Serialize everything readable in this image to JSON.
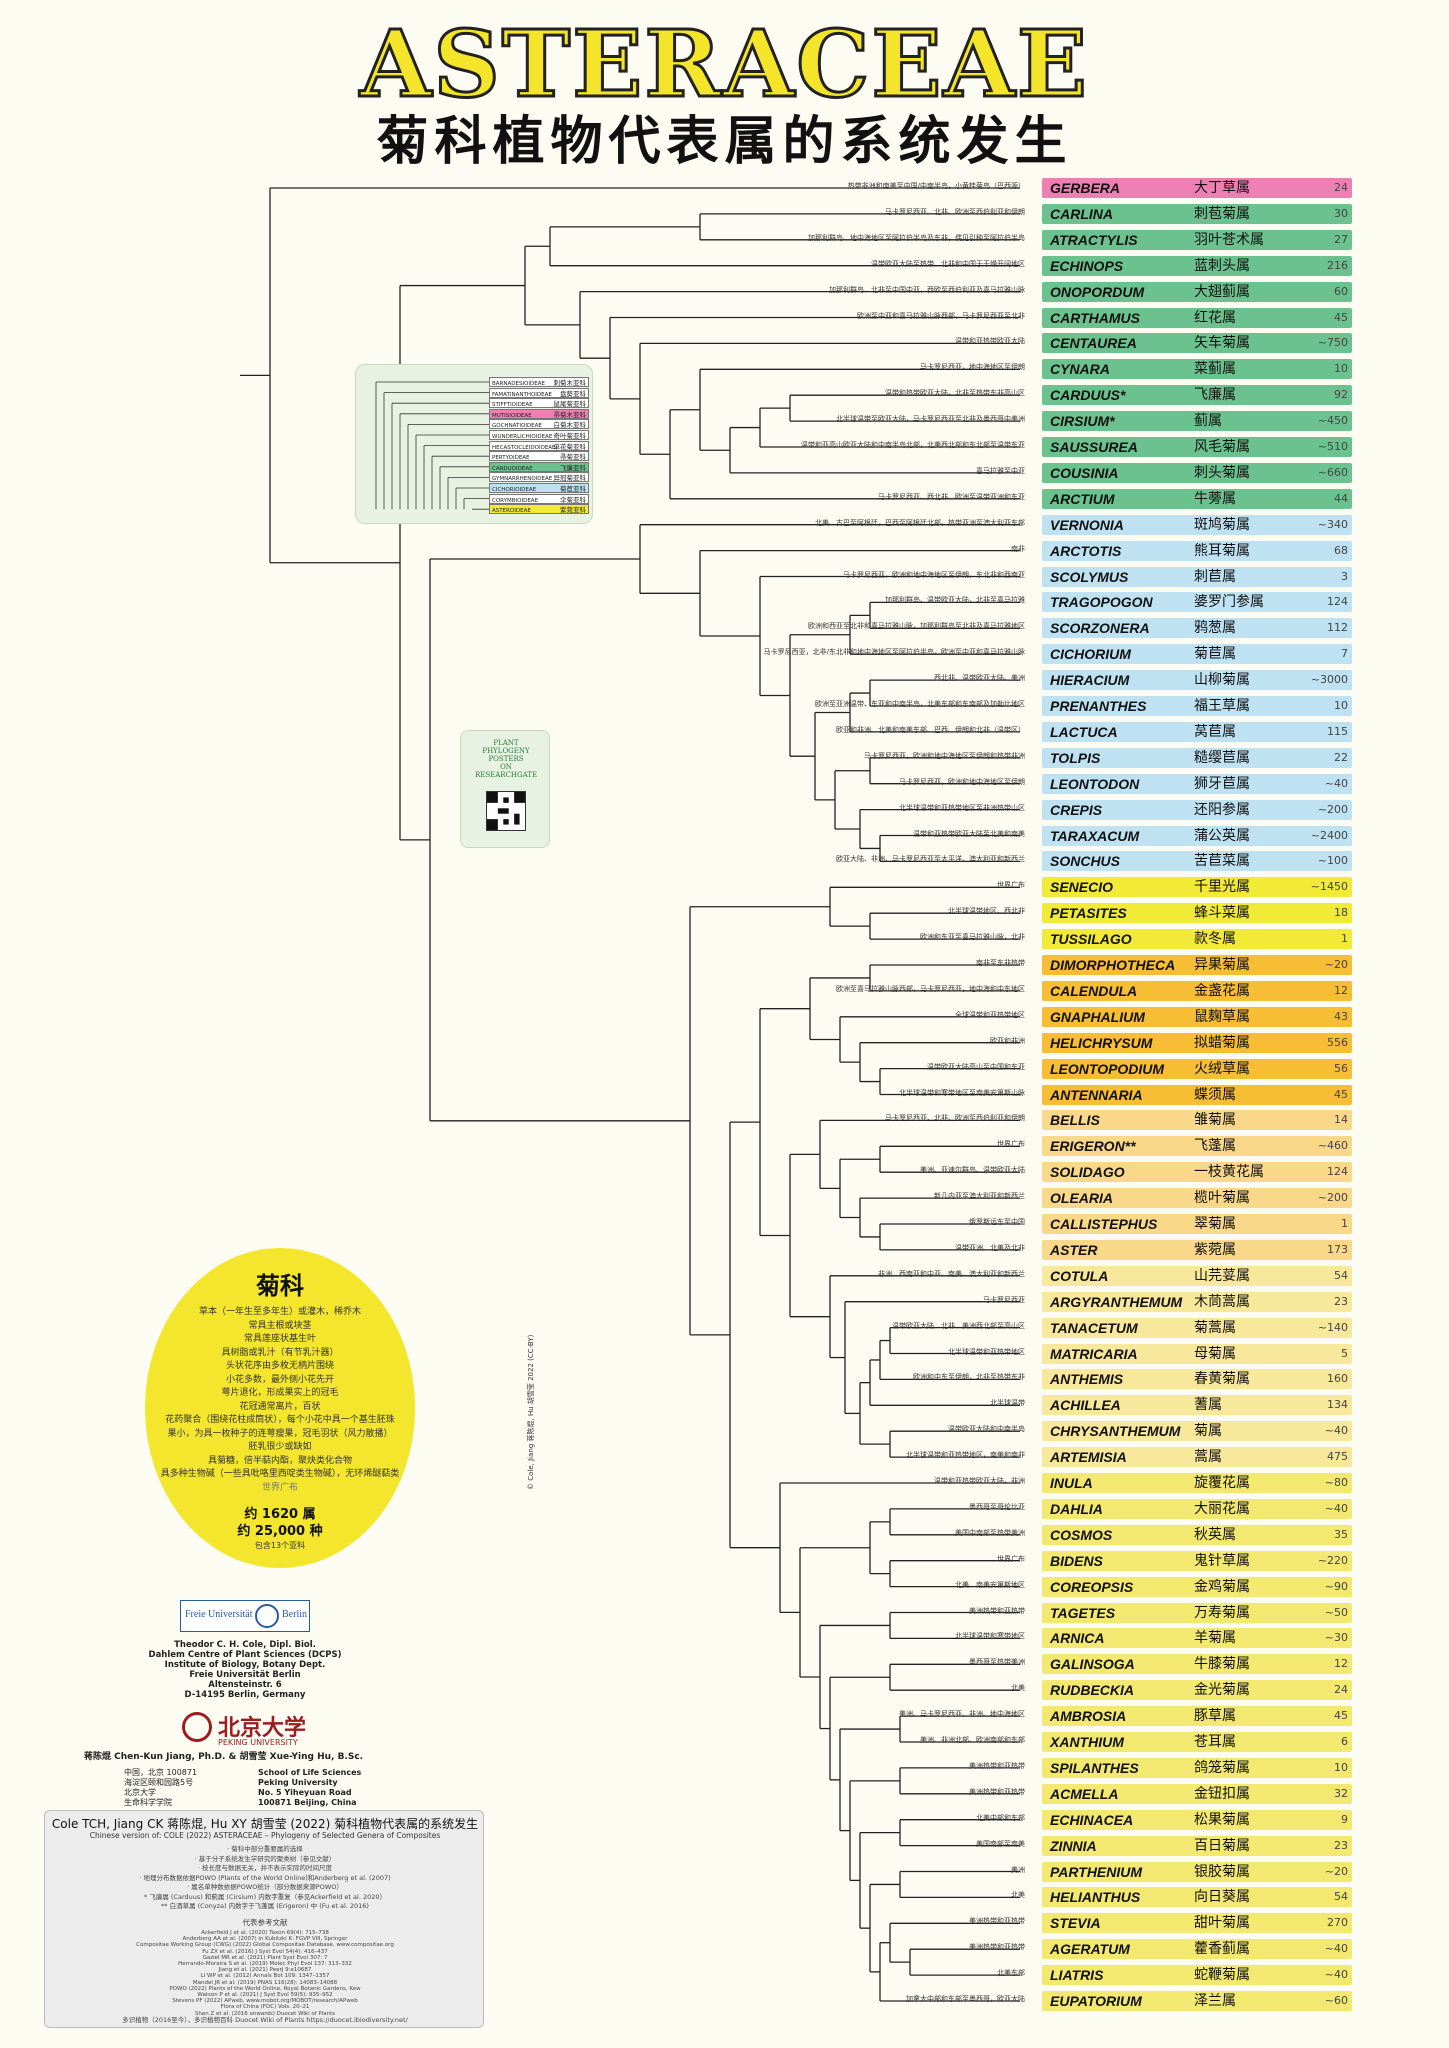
{
  "title": "ASTERACEAE",
  "subtitle": "菊科植物代表属的系统发生",
  "colors": {
    "pink": "#ee7fb3",
    "green": "#6cc28e",
    "lightblue": "#bfe2f3",
    "yellow": "#f1ea36",
    "orange": "#f6bd35",
    "lightorange": "#fad88a",
    "cream": "#f8e89b",
    "paleyellow": "#f4e970"
  },
  "genera": [
    {
      "lat": "GERBERA",
      "zh": "大丁草属",
      "n": "24",
      "c": "pink",
      "note": "热带非洲和南美至中国/中南半岛，小黄桂菊岛（巴西源）"
    },
    {
      "lat": "CARLINA",
      "zh": "刺苞菊属",
      "n": "30",
      "c": "green",
      "note": "马卡罗尼西亚、北非、欧洲至西伯利亚和伊朗"
    },
    {
      "lat": "ATRACTYLIS",
      "zh": "羽叶苍术属",
      "n": "27",
      "c": "green",
      "note": "加那利群岛、地中海地区至阿拉伯半岛及东非，偶见引种至阿拉伯半岛"
    },
    {
      "lat": "ECHINOPS",
      "zh": "蓝刺头属",
      "n": "216",
      "c": "green",
      "note": "温带欧亚大陆至热带、北非和中国于干燥开阔地区"
    },
    {
      "lat": "ONOPORDUM",
      "zh": "大翅蓟属",
      "n": "60",
      "c": "green",
      "note": "加那利群岛、北非至中国中亚，西欧至西伯利亚及喜马拉雅山脉"
    },
    {
      "lat": "CARTHAMUS",
      "zh": "红花属",
      "n": "45",
      "c": "green",
      "note": "欧洲至中亚和喜马拉雅山脉西部，马卡罗尼西亚至北非"
    },
    {
      "lat": "CENTAUREA",
      "zh": "矢车菊属",
      "n": "~750",
      "c": "green",
      "note": "温带和亚热带欧亚大陆"
    },
    {
      "lat": "CYNARA",
      "zh": "菜蓟属",
      "n": "10",
      "c": "green",
      "note": "马卡罗尼西亚，地中海地区至伊朗"
    },
    {
      "lat": "CARDUUS*",
      "zh": "飞廉属",
      "n": "92",
      "c": "green",
      "note": "温带和热带欧亚大陆，北非至热带东非高山区"
    },
    {
      "lat": "CIRSIUM*",
      "zh": "蓟属",
      "n": "~450",
      "c": "green",
      "note": "北半球温带至欧亚大陆，马卡罗尼西亚至北非及墨西哥中美洲"
    },
    {
      "lat": "SAUSSUREA",
      "zh": "风毛菊属",
      "n": "~510",
      "c": "green",
      "note": "温带和亚高山欧亚大陆和中南半岛北部，北美西北部和东北部至温带东亚"
    },
    {
      "lat": "COUSINIA",
      "zh": "刺头菊属",
      "n": "~660",
      "c": "green",
      "note": "喜马拉雅至中亚"
    },
    {
      "lat": "ARCTIUM",
      "zh": "牛蒡属",
      "n": "44",
      "c": "green",
      "note": "马卡罗尼西亚、西北非、欧洲至温带亚洲和东亚"
    },
    {
      "lat": "VERNONIA",
      "zh": "斑鸠菊属",
      "n": "~340",
      "c": "lightblue",
      "note": "北美、古巴至阿根廷，巴西至阿根廷北部，热带亚洲至澳大利亚东部"
    },
    {
      "lat": "ARCTOTIS",
      "zh": "熊耳菊属",
      "n": "68",
      "c": "lightblue",
      "note": "南非"
    },
    {
      "lat": "SCOLYMUS",
      "zh": "刺苣属",
      "n": "3",
      "c": "lightblue",
      "note": "马卡罗尼西亚，欧洲和地中海地区至伊朗，东北非和西南亚"
    },
    {
      "lat": "TRAGOPOGON",
      "zh": "婆罗门参属",
      "n": "124",
      "c": "lightblue",
      "note": "加那利群岛、温带欧亚大陆，北非至喜马拉雅"
    },
    {
      "lat": "SCORZONERA",
      "zh": "鸦葱属",
      "n": "112",
      "c": "lightblue",
      "note": "欧洲和西亚至北非和喜马拉雅山脉，加那利群岛至北非及喜马拉雅地区"
    },
    {
      "lat": "CICHORIUM",
      "zh": "菊苣属",
      "n": "7",
      "c": "lightblue",
      "note": "马卡罗尼西亚，北非/东北非和地中海地区至阿拉伯半岛，欧洲至中亚和喜马拉雅山脉"
    },
    {
      "lat": "HIERACIUM",
      "zh": "山柳菊属",
      "n": "~3000",
      "c": "lightblue",
      "note": "西北非、温带欧亚大陆、美洲"
    },
    {
      "lat": "PRENANTHES",
      "zh": "福王草属",
      "n": "10",
      "c": "lightblue",
      "note": "欧洲至亚洲温带、东亚和中南半岛，北美东部和东南部及加勒比地区"
    },
    {
      "lat": "LACTUCA",
      "zh": "莴苣属",
      "n": "115",
      "c": "lightblue",
      "note": "欧亚和非洲、北美和南美东部、巴西、伊朗和北非（温带区）"
    },
    {
      "lat": "TOLPIS",
      "zh": "糙缨苣属",
      "n": "22",
      "c": "lightblue",
      "note": "马卡罗尼西亚，欧洲和地中海地区至伊朗和热带非洲"
    },
    {
      "lat": "LEONTODON",
      "zh": "狮牙苣属",
      "n": "~40",
      "c": "lightblue",
      "note": "马卡罗尼西亚，欧洲和地中海地区至伊朗"
    },
    {
      "lat": "CREPIS",
      "zh": "还阳参属",
      "n": "~200",
      "c": "lightblue",
      "note": "北半球温带和亚热带地区至非洲热带山区"
    },
    {
      "lat": "TARAXACUM",
      "zh": "蒲公英属",
      "n": "~2400",
      "c": "lightblue",
      "note": "温带和亚热带欧亚大陆至北美和南美"
    },
    {
      "lat": "SONCHUS",
      "zh": "苦苣菜属",
      "n": "~100",
      "c": "lightblue",
      "note": "欧亚大陆、非洲、马卡罗尼西亚至太平洋、澳大利亚和新西兰"
    },
    {
      "lat": "SENECIO",
      "zh": "千里光属",
      "n": "~1450",
      "c": "yellow",
      "note": "世界广布"
    },
    {
      "lat": "PETASITES",
      "zh": "蜂斗菜属",
      "n": "18",
      "c": "yellow",
      "note": "北半球温带地区、西北非"
    },
    {
      "lat": "TUSSILAGO",
      "zh": "款冬属",
      "n": "1",
      "c": "yellow",
      "note": "欧洲和东亚至喜马拉雅山脉，北非"
    },
    {
      "lat": "DIMORPHOTHECA",
      "zh": "异果菊属",
      "n": "~20",
      "c": "orange",
      "note": "南非至东非热带"
    },
    {
      "lat": "CALENDULA",
      "zh": "金盏花属",
      "n": "12",
      "c": "orange",
      "note": "欧洲至喜马拉雅山脉西部，马卡罗尼西亚，地中海和中东地区"
    },
    {
      "lat": "GNAPHALIUM",
      "zh": "鼠麹草属",
      "n": "43",
      "c": "orange",
      "note": "全球温带和亚热带地区"
    },
    {
      "lat": "HELICHRYSUM",
      "zh": "拟蜡菊属",
      "n": "556",
      "c": "orange",
      "note": "欧亚和非洲"
    },
    {
      "lat": "LEONTOPODIUM",
      "zh": "火绒草属",
      "n": "56",
      "c": "orange",
      "note": "温带欧亚大陆高山至中国和东亚"
    },
    {
      "lat": "ANTENNARIA",
      "zh": "蝶须属",
      "n": "45",
      "c": "orange",
      "note": "北半球温带和寒带地区至南美安第斯山脉"
    },
    {
      "lat": "BELLIS",
      "zh": "雏菊属",
      "n": "14",
      "c": "lightorange",
      "note": "马卡罗尼西亚、北非、欧洲至西伯利亚和伊朗"
    },
    {
      "lat": "ERIGERON**",
      "zh": "飞蓬属",
      "n": "~460",
      "c": "lightorange",
      "note": "世界广布"
    },
    {
      "lat": "SOLIDAGO",
      "zh": "一枝黄花属",
      "n": "124",
      "c": "lightorange",
      "note": "美洲、亚速尔群岛、温带欧亚大陆"
    },
    {
      "lat": "OLEARIA",
      "zh": "榄叶菊属",
      "n": "~200",
      "c": "lightorange",
      "note": "新几内亚至澳大利亚和新西兰"
    },
    {
      "lat": "CALLISTEPHUS",
      "zh": "翠菊属",
      "n": "1",
      "c": "lightorange",
      "note": "俄罗斯远东至中国"
    },
    {
      "lat": "ASTER",
      "zh": "紫菀属",
      "n": "173",
      "c": "lightorange",
      "note": "温带亚洲、北美及北非"
    },
    {
      "lat": "COTULA",
      "zh": "山芫荽属",
      "n": "54",
      "c": "cream",
      "note": "非洲、西南亚和中亚、南美、澳大利亚和新西兰"
    },
    {
      "lat": "ARGYRANTHEMUM",
      "zh": "木茼蒿属",
      "n": "23",
      "c": "cream",
      "note": "马卡罗尼西亚"
    },
    {
      "lat": "TANACETUM",
      "zh": "菊蒿属",
      "n": "~140",
      "c": "cream",
      "note": "温带欧亚大陆、北非、美洲西北部至高山区"
    },
    {
      "lat": "MATRICARIA",
      "zh": "母菊属",
      "n": "5",
      "c": "cream",
      "note": "北半球温带和亚热带地区"
    },
    {
      "lat": "ANTHEMIS",
      "zh": "春黄菊属",
      "n": "160",
      "c": "cream",
      "note": "欧洲和中东至伊朗，北非至热带东非"
    },
    {
      "lat": "ACHILLEA",
      "zh": "蓍属",
      "n": "134",
      "c": "cream",
      "note": "北半球温带"
    },
    {
      "lat": "CHRYSANTHEMUM",
      "zh": "菊属",
      "n": "~40",
      "c": "cream",
      "note": "温带欧亚大陆和中南半岛"
    },
    {
      "lat": "ARTEMISIA",
      "zh": "蒿属",
      "n": "475",
      "c": "cream",
      "note": "北半球温带和亚热带地区，南美和南非"
    },
    {
      "lat": "INULA",
      "zh": "旋覆花属",
      "n": "~80",
      "c": "paleyellow",
      "note": "温带和亚热带欧亚大陆，非洲"
    },
    {
      "lat": "DAHLIA",
      "zh": "大丽花属",
      "n": "~40",
      "c": "paleyellow",
      "note": "墨西哥至哥伦比亚"
    },
    {
      "lat": "COSMOS",
      "zh": "秋英属",
      "n": "35",
      "c": "paleyellow",
      "note": "美国中南部至热带美洲"
    },
    {
      "lat": "BIDENS",
      "zh": "鬼针草属",
      "n": "~220",
      "c": "paleyellow",
      "note": "世界广布"
    },
    {
      "lat": "COREOPSIS",
      "zh": "金鸡菊属",
      "n": "~90",
      "c": "paleyellow",
      "note": "北美、南美安第斯地区"
    },
    {
      "lat": "TAGETES",
      "zh": "万寿菊属",
      "n": "~50",
      "c": "paleyellow",
      "note": "美洲热带和亚热带"
    },
    {
      "lat": "ARNICA",
      "zh": "羊菊属",
      "n": "~30",
      "c": "paleyellow",
      "note": "北半球温带和寒带地区"
    },
    {
      "lat": "GALINSOGA",
      "zh": "牛膝菊属",
      "n": "12",
      "c": "paleyellow",
      "note": "墨西哥至热带美洲"
    },
    {
      "lat": "RUDBECKIA",
      "zh": "金光菊属",
      "n": "24",
      "c": "paleyellow",
      "note": "北美"
    },
    {
      "lat": "AMBROSIA",
      "zh": "豚草属",
      "n": "45",
      "c": "paleyellow",
      "note": "美洲、马卡罗尼西亚、非洲、地中海地区"
    },
    {
      "lat": "XANTHIUM",
      "zh": "苍耳属",
      "n": "6",
      "c": "paleyellow",
      "note": "美洲、非洲北部、欧洲南部和东部"
    },
    {
      "lat": "SPILANTHES",
      "zh": "鸽笼菊属",
      "n": "10",
      "c": "paleyellow",
      "note": "美洲热带和亚热带"
    },
    {
      "lat": "ACMELLA",
      "zh": "金钮扣属",
      "n": "32",
      "c": "paleyellow",
      "note": "美洲热带和亚热带"
    },
    {
      "lat": "ECHINACEA",
      "zh": "松果菊属",
      "n": "9",
      "c": "paleyellow",
      "note": "北美中部和东部"
    },
    {
      "lat": "ZINNIA",
      "zh": "百日菊属",
      "n": "23",
      "c": "paleyellow",
      "note": "美国南部至南美"
    },
    {
      "lat": "PARTHENIUM",
      "zh": "银胶菊属",
      "n": "~20",
      "c": "paleyellow",
      "note": "美洲"
    },
    {
      "lat": "HELIANTHUS",
      "zh": "向日葵属",
      "n": "54",
      "c": "paleyellow",
      "note": "北美"
    },
    {
      "lat": "STEVIA",
      "zh": "甜叶菊属",
      "n": "270",
      "c": "paleyellow",
      "note": "美洲热带和亚热带"
    },
    {
      "lat": "AGERATUM",
      "zh": "藿香蓟属",
      "n": "~40",
      "c": "paleyellow",
      "note": "美洲热带和亚热带"
    },
    {
      "lat": "LIATRIS",
      "zh": "蛇鞭菊属",
      "n": "~40",
      "c": "paleyellow",
      "note": "北美东部"
    },
    {
      "lat": "EUPATORIUM",
      "zh": "泽兰属",
      "n": "~60",
      "c": "paleyellow",
      "note": "加拿大中部和东部至墨西哥，欧亚大陆"
    }
  ],
  "inset": {
    "subfamilies": [
      "BARNADESIOIDEAE",
      "FAMATINANTHOIDEAE",
      "STIFFTIOIDEAE",
      "MUTISIOIDEAE",
      "GOCHNATIOIDEAE",
      "WUNDERLICHIOIDEAE",
      "HECASTOCLEIDOIDEAE",
      "PERTYOIDEAE",
      "CARDUOIDEAE",
      "GYMNARRHENOIDEAE",
      "CICHORIOIDEAE",
      "CORYMBIOIDEAE",
      "ASTEROIDEAE"
    ],
    "subfamilies_zh": [
      "刺菊木亚科",
      "盘葵亚科",
      "鼠尾菊亚科",
      "帚菊木亚科",
      "白菊木亚科",
      "奇叶菊亚科",
      "单花菊亚科",
      "帚菊亚科",
      "飞廉亚科",
      "异冠菊亚科",
      "菊苣亚科",
      "伞菊亚科",
      "紫菀亚科"
    ]
  },
  "qr": {
    "l1": "PLANT",
    "l2": "PHYLOGENY",
    "l3": "POSTERS",
    "l4": "ON",
    "l5": "RESEARCHGATE"
  },
  "summary": {
    "title": "菊科",
    "lines": [
      "草本（一年生至多年生）或灌木，稀乔木",
      "常具主根或块茎",
      "常具莲座状基生叶",
      "具树脂或乳汁（有节乳汁器）",
      "头状花序由多枚无柄片围绕",
      "小花多数，最外侧小花先开",
      "萼片退化，形成果实上的冠毛",
      "花冠通常离片，百状",
      "花药聚合（围绕花柱成筒状），每个小花中具一个基生胚珠",
      "果小，为具一枚种子的连萼瘦果，冠毛羽状（风力散播）",
      "胚乳很少或缺如",
      "具菊糖，倍半萜内酯，聚炔类化合物",
      "具多种生物碱（一些具吡咯里西啶类生物碱），无环烯醚萜类",
      "世界广布"
    ],
    "genera_count": "约 1620 属",
    "species_count": "约 25,000 种",
    "subfamily_count": "包含13个亚科"
  },
  "credits": {
    "fu_logo_l": "Freie Universität",
    "fu_logo_r": "Berlin",
    "author1": "Theodor C. H. Cole, Dipl. Biol.",
    "addr1": [
      "Dahlem Centre of Plant Sciences (DCPS)",
      "Institute of Biology, Botany Dept.",
      "Freie Universität Berlin",
      "Altensteinstr. 6",
      "D-14195 Berlin, Germany"
    ],
    "pku_zh": "北京大学",
    "pku_en": "PEKING UNIVERSITY",
    "author2": "蒋陈焜 Chen-Kun Jiang, Ph.D. & 胡雪莹 Xue-Ying Hu, B.Sc.",
    "addr2_zh": [
      "中国，北京 100871",
      "海淀区颐和园路5号",
      "北京大学",
      "生命科学学院"
    ],
    "addr2_en": [
      "School of Life Sciences",
      "Peking University",
      "No. 5 Yiheyuan Road",
      "100871 Beijing, China"
    ],
    "copyright": "© Cole, Jiang 蒋陈焜, Hu 胡雪莹 2022 (CC-BY)"
  },
  "citation": {
    "title": "Cole TCH, Jiang CK 蒋陈焜, Hu XY 胡雪莹 (2022) 菊科植物代表属的系统发生",
    "sub": "Chinese version of: COLE (2022) ASTERACEAE – Phylogeny of Selected Genera of Composites",
    "notes": [
      "· 菊科中部分重要属的选择",
      "· 基于分子系统发生学研究的聚类树（参见文献）",
      "· 枝长度与数据无关，并不表示实际的时间尺度",
      "· 地理分布数据依据POWO (Plants of the World Online)和Anderberg et al. (2007)",
      "· 属名单种数依据POWO统计（部分数据来源POWO）",
      "* 飞廉属 (Carduus) 和蓟属 (Cirsium) 内数字重复（参见Ackerfield et al. 2020）",
      "** 白酒草属 (Conyza) 内数字于飞蓬属 (Erigeron) 中 (Fu et al. 2016)"
    ],
    "refs_title": "代表参考文献",
    "refs": [
      "Ackerfield J et al. (2020) Taxon 69(4): 715–738",
      "Anderberg AA et al. (2007) in Kubitzki K: FGVP VIII, Springer",
      "Compositae Working Group (CWG) (2022) Global Compositae Database, www.compositae.org",
      "Fu ZX et al. (2016) J Syst Evol 54(4): 416–437",
      "Gaziel MR et al. (2021) Plant Syst Evol 307: 7",
      "Herrando-Moraira S et al. (2019) Molec Phyl Evol 137: 313–332",
      "Jiang et al. (2021) PeerJ 9:e10687",
      "LI WP et al. (2012) Annals Bot 109: 1347–1357",
      "Mandel JR et al. (2019) PNAS 116(28): 14083–14088",
      "POWO (2022) Plants of the World Online, Royal Botanic Gardens, Kew",
      "Watson P et al. (2021) J Syst Evol 59(5): 935–952",
      "Stevens PF (2022) APweb, www.mobot.org/MOBOT/research/APweb",
      "Flora of China (FOC) Vols. 20–21",
      "Shen Z et al. (2016 onwards) Duocet Wiki of Plants"
    ],
    "credit": "多识植物（2016至今），多识植物百科 Duocet Wiki of Plants  https://duocet.ibiodiversity.net/"
  }
}
